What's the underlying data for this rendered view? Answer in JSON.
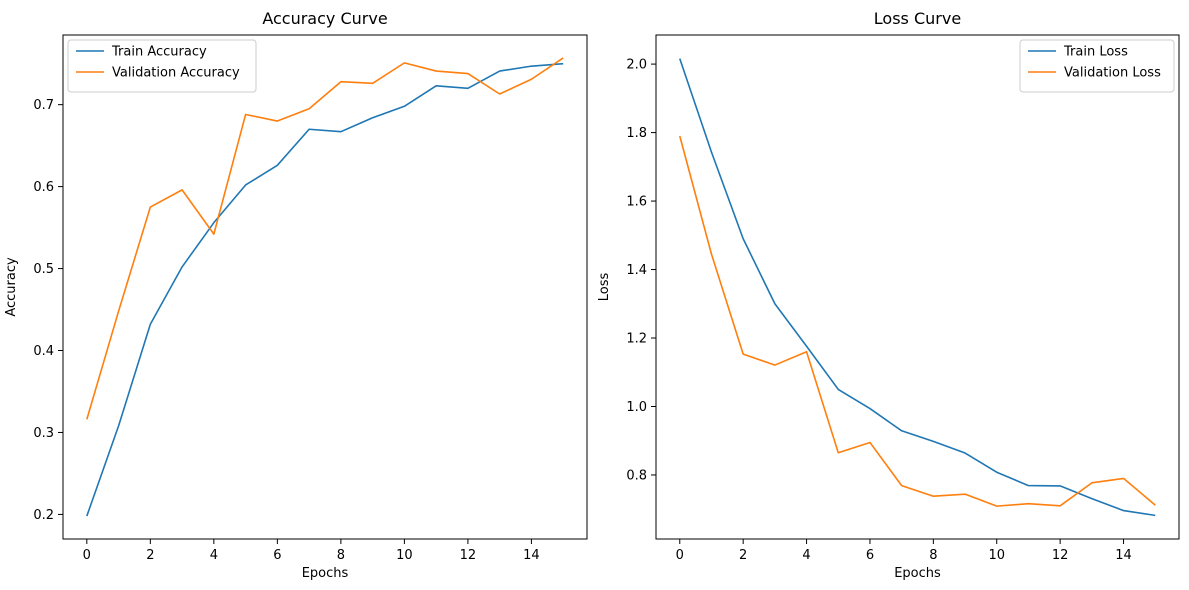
{
  "chart_data": [
    {
      "type": "line",
      "title": "Accuracy Curve",
      "xlabel": "Epochs",
      "ylabel": "Accuracy",
      "xlim": [
        -0.75,
        15.75
      ],
      "ylim": [
        0.17,
        0.785
      ],
      "xticks": [
        0,
        2,
        4,
        6,
        8,
        10,
        12,
        14
      ],
      "yticks": [
        0.2,
        0.3,
        0.4,
        0.5,
        0.6,
        0.7
      ],
      "x": [
        0,
        1,
        2,
        3,
        4,
        5,
        6,
        7,
        8,
        9,
        10,
        11,
        12,
        13,
        14,
        15
      ],
      "legend_position": "top-left",
      "series": [
        {
          "name": "Train Accuracy",
          "color": "#1f77b4",
          "values": [
            0.198,
            0.308,
            0.432,
            0.502,
            0.556,
            0.602,
            0.626,
            0.67,
            0.667,
            0.684,
            0.698,
            0.723,
            0.72,
            0.741,
            0.747,
            0.75
          ]
        },
        {
          "name": "Validation Accuracy",
          "color": "#ff7f0e",
          "values": [
            0.316,
            0.448,
            0.575,
            0.596,
            0.542,
            0.688,
            0.68,
            0.695,
            0.728,
            0.726,
            0.751,
            0.741,
            0.738,
            0.713,
            0.731,
            0.757
          ]
        }
      ]
    },
    {
      "type": "line",
      "title": "Loss Curve",
      "xlabel": "Epochs",
      "ylabel": "Loss",
      "xlim": [
        -0.75,
        15.75
      ],
      "ylim": [
        0.613,
        2.085
      ],
      "xticks": [
        0,
        2,
        4,
        6,
        8,
        10,
        12,
        14
      ],
      "yticks": [
        0.8,
        1.0,
        1.2,
        1.4,
        1.6,
        1.8,
        2.0
      ],
      "x": [
        0,
        1,
        2,
        3,
        4,
        5,
        6,
        7,
        8,
        9,
        10,
        11,
        12,
        13,
        14,
        15
      ],
      "legend_position": "top-right",
      "series": [
        {
          "name": "Train Loss",
          "color": "#1f77b4",
          "values": [
            2.016,
            1.743,
            1.49,
            1.3,
            1.176,
            1.05,
            0.994,
            0.929,
            0.898,
            0.864,
            0.808,
            0.769,
            0.768,
            0.731,
            0.696,
            0.682
          ]
        },
        {
          "name": "Validation Loss",
          "color": "#ff7f0e",
          "values": [
            1.79,
            1.445,
            1.153,
            1.121,
            1.16,
            0.865,
            0.895,
            0.769,
            0.738,
            0.744,
            0.709,
            0.716,
            0.71,
            0.777,
            0.79,
            0.712
          ]
        }
      ]
    }
  ]
}
